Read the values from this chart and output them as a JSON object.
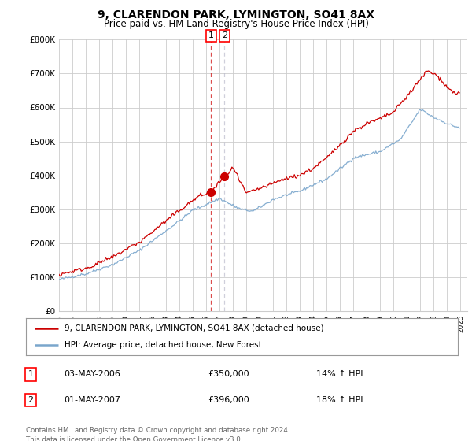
{
  "title": "9, CLARENDON PARK, LYMINGTON, SO41 8AX",
  "subtitle": "Price paid vs. HM Land Registry's House Price Index (HPI)",
  "red_label": "9, CLARENDON PARK, LYMINGTON, SO41 8AX (detached house)",
  "blue_label": "HPI: Average price, detached house, New Forest",
  "transaction1_date": "03-MAY-2006",
  "transaction1_price": "£350,000",
  "transaction1_hpi": "14% ↑ HPI",
  "transaction2_date": "01-MAY-2007",
  "transaction2_price": "£396,000",
  "transaction2_hpi": "18% ↑ HPI",
  "footer": "Contains HM Land Registry data © Crown copyright and database right 2024.\nThis data is licensed under the Open Government Licence v3.0.",
  "ylim": [
    0,
    800000
  ],
  "xlim_start": 1995.0,
  "xlim_end": 2025.5,
  "red_color": "#cc0000",
  "blue_color": "#7aa6cc",
  "background_color": "#ffffff",
  "grid_color": "#cccccc",
  "trans1_x": 2006.37,
  "trans1_y": 350000,
  "trans2_x": 2007.37,
  "trans2_y": 396000
}
